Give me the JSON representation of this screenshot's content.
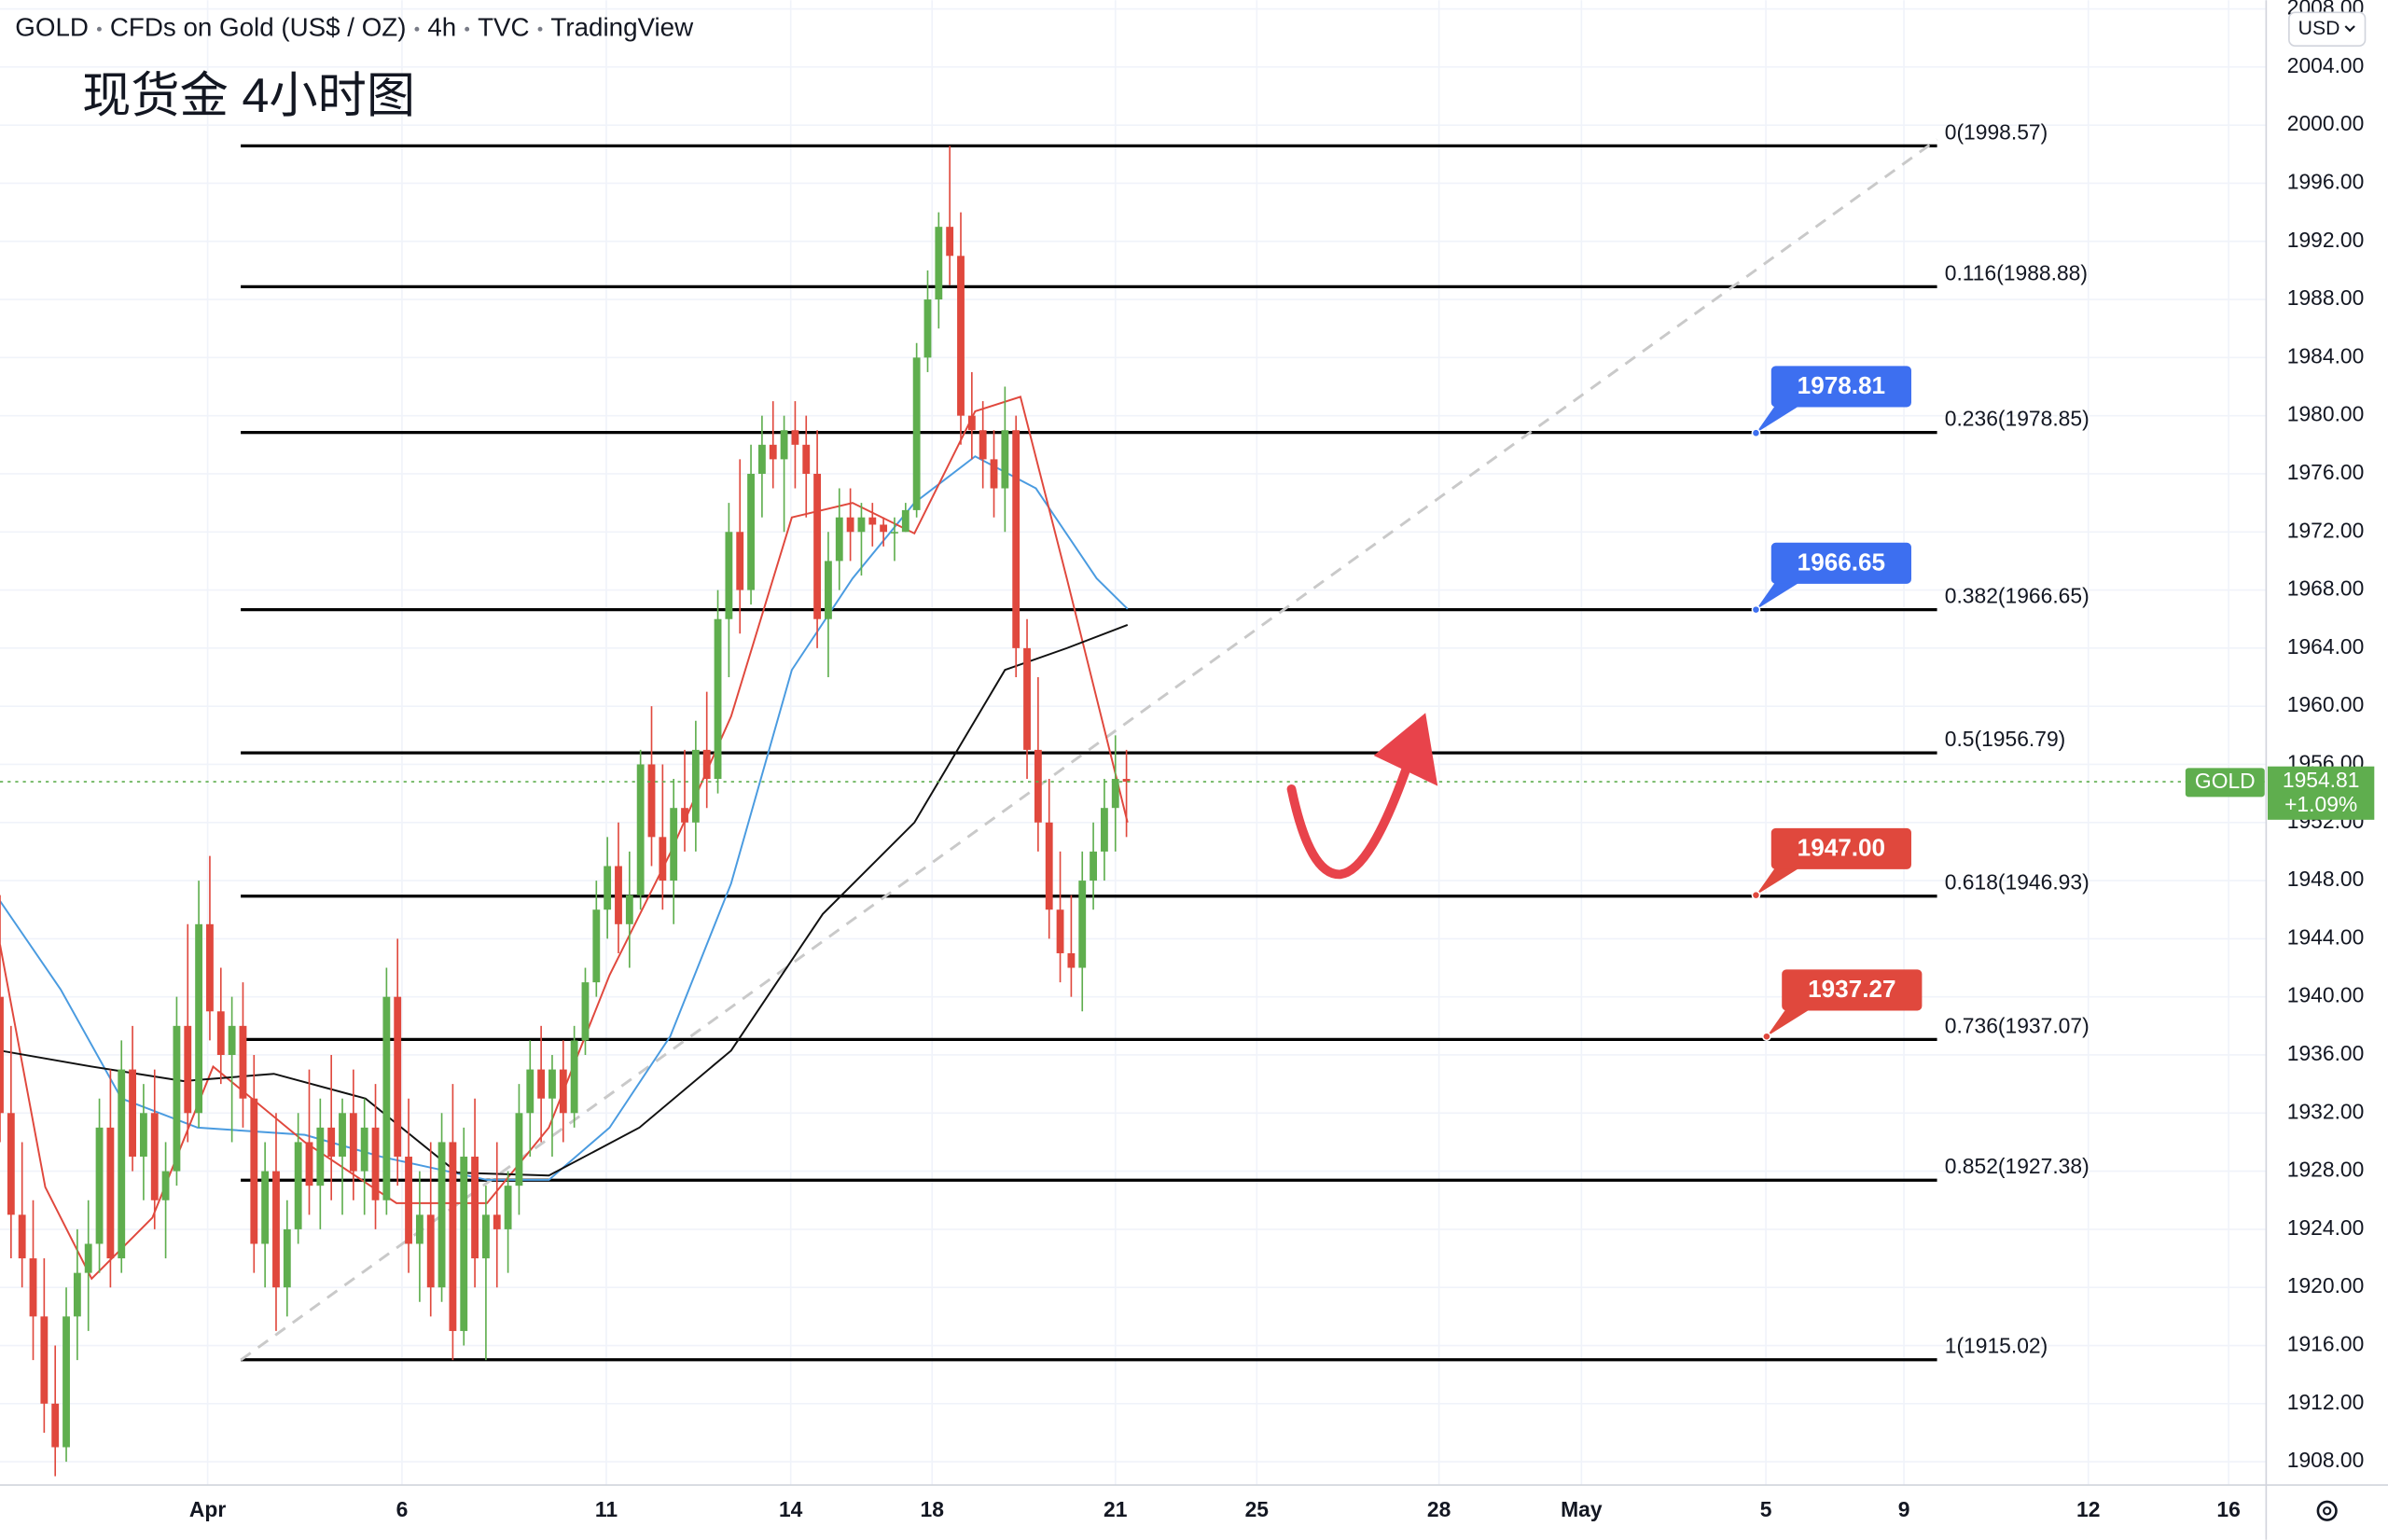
{
  "header": [
    "GOLD",
    "CFDs on Gold (US$ / OZ)",
    "4h",
    "TVC",
    "TradingView"
  ],
  "currency": "USD",
  "chart_data": {
    "type": "candlestick",
    "title": "现货金 4小时图",
    "up_color": "#5fae4e",
    "down_color": "#e0483d",
    "xlim": [
      0,
      205.2
    ],
    "ylim": [
      1906.4,
      2008.6
    ],
    "xticks": [
      {
        "value": 18.8,
        "label": "Apr"
      },
      {
        "value": 36.4,
        "label": "6"
      },
      {
        "value": 54.9,
        "label": "11"
      },
      {
        "value": 71.6,
        "label": "14"
      },
      {
        "value": 84.4,
        "label": "18"
      },
      {
        "value": 101,
        "label": "21"
      },
      {
        "value": 113.8,
        "label": "25"
      },
      {
        "value": 130.3,
        "label": "28"
      },
      {
        "value": 143.2,
        "label": "May"
      },
      {
        "value": 159.9,
        "label": "5"
      },
      {
        "value": 172.4,
        "label": "9"
      },
      {
        "value": 189.1,
        "label": "12"
      },
      {
        "value": 201.8,
        "label": "16"
      }
    ],
    "yticks": [
      {
        "value": 1908,
        "label": "1908.00"
      },
      {
        "value": 1912,
        "label": "1912.00"
      },
      {
        "value": 1916,
        "label": "1916.00"
      },
      {
        "value": 1920,
        "label": "1920.00"
      },
      {
        "value": 1924,
        "label": "1924.00"
      },
      {
        "value": 1928,
        "label": "1928.00"
      },
      {
        "value": 1932,
        "label": "1932.00"
      },
      {
        "value": 1936,
        "label": "1936.00"
      },
      {
        "value": 1940,
        "label": "1940.00"
      },
      {
        "value": 1944,
        "label": "1944.00"
      },
      {
        "value": 1948,
        "label": "1948.00"
      },
      {
        "value": 1952,
        "label": "1952.00"
      },
      {
        "value": 1956,
        "label": "1956.00"
      },
      {
        "value": 1960,
        "label": "1960.00"
      },
      {
        "value": 1964,
        "label": "1964.00"
      },
      {
        "value": 1968,
        "label": "1968.00"
      },
      {
        "value": 1972,
        "label": "1972.00"
      },
      {
        "value": 1976,
        "label": "1976.00"
      },
      {
        "value": 1980,
        "label": "1980.00"
      },
      {
        "value": 1984,
        "label": "1984.00"
      },
      {
        "value": 1988,
        "label": "1988.00"
      },
      {
        "value": 1992,
        "label": "1992.00"
      },
      {
        "value": 1996,
        "label": "1996.00"
      },
      {
        "value": 2000,
        "label": "2000.00"
      },
      {
        "value": 2004,
        "label": "2004.00"
      },
      {
        "value": 2008,
        "label": "2008.00"
      }
    ],
    "grid": true,
    "ohlc": {
      "x": [
        0,
        1,
        2,
        3,
        4,
        5,
        6,
        7,
        8,
        9,
        10,
        11,
        12,
        13,
        14,
        15,
        16,
        17,
        18,
        19,
        20,
        21,
        22,
        23,
        24,
        25,
        26,
        27,
        28,
        29,
        30,
        31,
        32,
        33,
        34,
        35,
        36,
        37,
        38,
        39,
        40,
        41,
        42,
        43,
        44,
        45,
        46,
        47,
        48,
        49,
        50,
        51,
        52,
        53,
        54,
        55,
        56,
        57,
        58,
        59,
        60,
        61,
        62,
        63,
        64,
        65,
        66,
        67,
        68,
        69,
        70,
        71,
        72,
        73,
        74,
        75,
        76,
        77,
        78,
        79,
        80,
        81,
        82,
        83,
        84,
        85,
        86,
        87,
        88,
        89,
        90,
        91,
        92,
        93,
        94,
        95,
        96,
        97,
        98,
        99,
        100,
        101,
        102
      ],
      "open": [
        1940,
        1932,
        1925,
        1922,
        1918,
        1912,
        1909,
        1918,
        1921,
        1923,
        1931,
        1922,
        1935,
        1929,
        1932,
        1926,
        1928,
        1938,
        1932,
        1945,
        1939,
        1936,
        1938,
        1933,
        1923,
        1928,
        1920,
        1924,
        1930,
        1927,
        1931,
        1929,
        1932,
        1928,
        1931,
        1926,
        1940,
        1929,
        1923,
        1925,
        1920,
        1930,
        1917,
        1929,
        1922,
        1925,
        1924,
        1927,
        1932,
        1935,
        1933,
        1935,
        1932,
        1937,
        1941,
        1946,
        1949,
        1945,
        1947,
        1956,
        1951,
        1948,
        1953,
        1952,
        1957,
        1955,
        1966,
        1972,
        1968,
        1976,
        1978,
        1977,
        1979,
        1978,
        1976,
        1966,
        1970,
        1973,
        1972,
        1973,
        1972.5,
        1972,
        1972,
        1973.5,
        1984,
        1988,
        1993,
        1991,
        1980,
        1979,
        1977,
        1975,
        1979,
        1964,
        1957,
        1952,
        1946,
        1943,
        1942,
        1948,
        1950,
        1953,
        1955
      ],
      "high": [
        1947,
        1938,
        1930,
        1926,
        1922,
        1916,
        1920,
        1924,
        1926,
        1933,
        1935,
        1937,
        1938,
        1934,
        1935,
        1930,
        1940,
        1945,
        1948,
        1949.7,
        1942,
        1940,
        1941,
        1936,
        1930,
        1932,
        1926,
        1932,
        1935,
        1933,
        1936,
        1933,
        1935,
        1933,
        1934,
        1942,
        1944,
        1933,
        1928,
        1930,
        1932,
        1934,
        1931,
        1933,
        1927,
        1930,
        1928,
        1934,
        1937,
        1938,
        1936,
        1937,
        1938,
        1942,
        1948,
        1951,
        1952,
        1950,
        1957,
        1960,
        1956,
        1955,
        1957,
        1959,
        1961,
        1968,
        1974,
        1977,
        1978,
        1980,
        1981,
        1980,
        1981,
        1980,
        1979,
        1972,
        1975,
        1975,
        1974,
        1974,
        1973,
        1973,
        1974,
        1985,
        1990,
        1994,
        1998.57,
        1994,
        1983,
        1981,
        1979,
        1982,
        1980,
        1966,
        1962,
        1955,
        1950,
        1947,
        1950,
        1952,
        1955,
        1958,
        1957
      ],
      "low": [
        1930,
        1922,
        1920,
        1915,
        1910,
        1907,
        1908,
        1915,
        1917,
        1921,
        1920,
        1921,
        1928,
        1926,
        1924,
        1922,
        1927,
        1930,
        1931,
        1937,
        1934,
        1930,
        1931,
        1921,
        1920,
        1917,
        1918,
        1923,
        1925,
        1924,
        1926,
        1925,
        1926,
        1925,
        1924,
        1925,
        1927,
        1921,
        1919,
        1918,
        1919,
        1915,
        1916,
        1920,
        1915,
        1920,
        1921,
        1925,
        1929,
        1930,
        1929,
        1930,
        1931,
        1936,
        1940,
        1944,
        1943,
        1942,
        1946,
        1949,
        1946,
        1945,
        1950,
        1950,
        1953,
        1954,
        1962,
        1965,
        1967,
        1973,
        1975,
        1972,
        1975,
        1973,
        1964,
        1962,
        1968,
        1970,
        1969,
        1971,
        1971,
        1970,
        1972,
        1973,
        1983,
        1986,
        1989,
        1978,
        1977,
        1975,
        1973,
        1972,
        1962,
        1955,
        1950,
        1944,
        1941,
        1940,
        1939,
        1946,
        1948,
        1950,
        1951
      ],
      "close": [
        1932,
        1925,
        1922,
        1918,
        1912,
        1909,
        1918,
        1921,
        1923,
        1931,
        1922,
        1935,
        1929,
        1932,
        1926,
        1928,
        1938,
        1932,
        1945,
        1939,
        1936,
        1938,
        1933,
        1923,
        1928,
        1920,
        1924,
        1930,
        1927,
        1931,
        1929,
        1932,
        1928,
        1931,
        1926,
        1940,
        1929,
        1923,
        1925,
        1920,
        1930,
        1917,
        1929,
        1922,
        1925,
        1924,
        1927,
        1932,
        1935,
        1933,
        1935,
        1932,
        1937,
        1941,
        1946,
        1949,
        1945,
        1947,
        1956,
        1951,
        1948,
        1953,
        1952,
        1957,
        1955,
        1966,
        1972,
        1968,
        1976,
        1978,
        1977,
        1979,
        1978,
        1976,
        1966,
        1970,
        1973,
        1972,
        1973,
        1972.5,
        1972,
        1972,
        1973.5,
        1984,
        1988,
        1993,
        1991,
        1980,
        1979,
        1977,
        1975,
        1979,
        1964,
        1957,
        1952,
        1946,
        1943,
        1942,
        1948,
        1950,
        1953,
        1955,
        1954.81
      ]
    },
    "lines": [
      {
        "color": "#4a9be0",
        "x": [
          0,
          5.5,
          11,
          17.9,
          27.6,
          34.5,
          44.1,
          49.7,
          55.2,
          60.7,
          66.2,
          71.7,
          77.2,
          82.8,
          88.3,
          93.8,
          99.3,
          102.1
        ],
        "values": [
          1946.6,
          1940.5,
          1933,
          1931,
          1930.5,
          1929,
          1927.4,
          1927.4,
          1931,
          1937.3,
          1947.8,
          1962.5,
          1968.8,
          1974,
          1977.2,
          1975,
          1968.8,
          1966.7
        ]
      },
      {
        "color": "#e0483d",
        "x": [
          0,
          4.1,
          8.3,
          13.8,
          19.3,
          27.6,
          35.9,
          44.1,
          49.7,
          55.2,
          60.7,
          66.2,
          71.7,
          77.2,
          82.8,
          88.3,
          92.4,
          96.6,
          102.1
        ],
        "values": [
          1943.6,
          1926.9,
          1920.6,
          1924.8,
          1935.2,
          1930,
          1925.8,
          1925.8,
          1931,
          1941.5,
          1949.9,
          1959.3,
          1973,
          1974,
          1971.9,
          1980.3,
          1981.3,
          1968.8,
          1952
        ]
      },
      {
        "color": "#111111",
        "x": [
          0,
          8.3,
          16.6,
          24.8,
          33.1,
          41.4,
          49.7,
          57.9,
          66.2,
          74.5,
          82.8,
          91,
          96.6,
          102.1
        ],
        "values": [
          1936.3,
          1935.2,
          1934.2,
          1934.7,
          1933,
          1927.9,
          1927.7,
          1931,
          1936.3,
          1945.7,
          1952,
          1962.5,
          1964,
          1965.6
        ]
      }
    ],
    "trend": {
      "x": [
        21.8,
        175.4
      ],
      "y": [
        1915,
        1999
      ]
    },
    "fib": {
      "x": [
        21.8,
        175.4
      ],
      "levels": [
        {
          "value": 1998.57,
          "label": "0(1998.57)"
        },
        {
          "value": 1988.88,
          "label": "0.116(1988.88)"
        },
        {
          "value": 1978.85,
          "label": "0.236(1978.85)"
        },
        {
          "value": 1966.65,
          "label": "0.382(1966.65)"
        },
        {
          "value": 1956.79,
          "label": "0.5(1956.79)"
        },
        {
          "value": 1946.93,
          "label": "0.618(1946.93)"
        },
        {
          "value": 1937.07,
          "label": "0.736(1937.07)"
        },
        {
          "value": 1927.38,
          "label": "0.852(1927.38)"
        },
        {
          "value": 1915.02,
          "label": "1(1915.02)"
        }
      ]
    },
    "callouts": [
      {
        "value": 1978.81,
        "color": "#3d6ff0"
      },
      {
        "value": 1966.65,
        "color": "#3d6ff0"
      },
      {
        "value": 1947.0,
        "color": "#e0483d",
        "value_label": "1947.00"
      },
      {
        "value": 1937.27,
        "color": "#e0483d"
      }
    ],
    "last_price": {
      "symbol": "GOLD",
      "value": 1954.81,
      "change": "+1.09%",
      "color": "#5fae4e"
    }
  }
}
